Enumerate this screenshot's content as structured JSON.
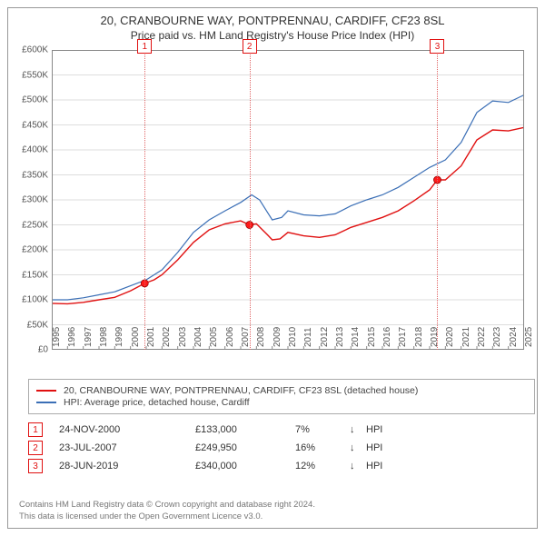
{
  "title": "20, CRANBOURNE WAY, PONTPRENNAU, CARDIFF, CF23 8SL",
  "subtitle": "Price paid vs. HM Land Registry's House Price Index (HPI)",
  "colors": {
    "frame_border": "#999999",
    "axis": "#888888",
    "grid": "#dddddd",
    "series_property": "#e01010",
    "series_hpi": "#3b6fb6",
    "marker_vline": "#e06666",
    "sale_dot_fill": "#ff1a1a",
    "background": "#ffffff",
    "text": "#333333",
    "footer_text": "#777777"
  },
  "chart": {
    "type": "line",
    "x_start_year": 1995,
    "x_end_year": 2025,
    "ylim": [
      0,
      600000
    ],
    "ytick_step": 50000,
    "ytick_labels": [
      "£0",
      "£50K",
      "£100K",
      "£150K",
      "£200K",
      "£250K",
      "£300K",
      "£350K",
      "£400K",
      "£450K",
      "£500K",
      "£550K",
      "£600K"
    ],
    "xtick_labels": [
      "1995",
      "1996",
      "1997",
      "1998",
      "1999",
      "2000",
      "2001",
      "2002",
      "2003",
      "2004",
      "2005",
      "2006",
      "2007",
      "2008",
      "2009",
      "2010",
      "2011",
      "2012",
      "2013",
      "2014",
      "2015",
      "2016",
      "2017",
      "2018",
      "2019",
      "2020",
      "2021",
      "2022",
      "2023",
      "2024",
      "2025"
    ],
    "series": {
      "property": {
        "label": "20, CRANBOURNE WAY, PONTPRENNAU, CARDIFF, CF23 8SL (detached house)",
        "line_width": 1.4,
        "points": [
          [
            1995.0,
            93000
          ],
          [
            1996.0,
            92000
          ],
          [
            1997.0,
            95000
          ],
          [
            1998.0,
            100000
          ],
          [
            1999.0,
            105000
          ],
          [
            2000.0,
            118000
          ],
          [
            2000.9,
            133000
          ],
          [
            2001.5,
            140000
          ],
          [
            2002.0,
            150000
          ],
          [
            2003.0,
            180000
          ],
          [
            2004.0,
            215000
          ],
          [
            2005.0,
            240000
          ],
          [
            2006.0,
            252000
          ],
          [
            2007.0,
            258000
          ],
          [
            2007.56,
            249950
          ],
          [
            2008.0,
            252000
          ],
          [
            2008.7,
            230000
          ],
          [
            2009.0,
            220000
          ],
          [
            2009.5,
            222000
          ],
          [
            2010.0,
            235000
          ],
          [
            2011.0,
            228000
          ],
          [
            2012.0,
            225000
          ],
          [
            2013.0,
            230000
          ],
          [
            2014.0,
            245000
          ],
          [
            2015.0,
            255000
          ],
          [
            2016.0,
            265000
          ],
          [
            2017.0,
            278000
          ],
          [
            2018.0,
            298000
          ],
          [
            2019.0,
            320000
          ],
          [
            2019.49,
            340000
          ],
          [
            2020.0,
            340000
          ],
          [
            2021.0,
            368000
          ],
          [
            2022.0,
            420000
          ],
          [
            2023.0,
            440000
          ],
          [
            2024.0,
            438000
          ],
          [
            2025.0,
            445000
          ]
        ]
      },
      "hpi": {
        "label": "HPI: Average price, detached house, Cardiff",
        "line_width": 1.2,
        "points": [
          [
            1995.0,
            100000
          ],
          [
            1996.0,
            100000
          ],
          [
            1997.0,
            104000
          ],
          [
            1998.0,
            110000
          ],
          [
            1999.0,
            116000
          ],
          [
            2000.0,
            128000
          ],
          [
            2001.0,
            140000
          ],
          [
            2002.0,
            160000
          ],
          [
            2003.0,
            195000
          ],
          [
            2004.0,
            235000
          ],
          [
            2005.0,
            260000
          ],
          [
            2006.0,
            278000
          ],
          [
            2007.0,
            295000
          ],
          [
            2007.7,
            310000
          ],
          [
            2008.2,
            300000
          ],
          [
            2008.7,
            275000
          ],
          [
            2009.0,
            260000
          ],
          [
            2009.6,
            265000
          ],
          [
            2010.0,
            278000
          ],
          [
            2011.0,
            270000
          ],
          [
            2012.0,
            268000
          ],
          [
            2013.0,
            272000
          ],
          [
            2014.0,
            288000
          ],
          [
            2015.0,
            300000
          ],
          [
            2016.0,
            310000
          ],
          [
            2017.0,
            325000
          ],
          [
            2018.0,
            345000
          ],
          [
            2019.0,
            365000
          ],
          [
            2020.0,
            380000
          ],
          [
            2021.0,
            415000
          ],
          [
            2022.0,
            475000
          ],
          [
            2023.0,
            498000
          ],
          [
            2024.0,
            495000
          ],
          [
            2025.0,
            510000
          ]
        ]
      }
    },
    "sale_markers": [
      {
        "n": "1",
        "year": 2000.9,
        "price": 133000
      },
      {
        "n": "2",
        "year": 2007.56,
        "price": 249950
      },
      {
        "n": "3",
        "year": 2019.49,
        "price": 340000
      }
    ]
  },
  "legend": {
    "items": [
      {
        "key": "property"
      },
      {
        "key": "hpi"
      }
    ]
  },
  "sales": [
    {
      "n": "1",
      "date": "24-NOV-2000",
      "price": "£133,000",
      "pct": "7%",
      "dir": "↓",
      "tag": "HPI"
    },
    {
      "n": "2",
      "date": "23-JUL-2007",
      "price": "£249,950",
      "pct": "16%",
      "dir": "↓",
      "tag": "HPI"
    },
    {
      "n": "3",
      "date": "28-JUN-2019",
      "price": "£340,000",
      "pct": "12%",
      "dir": "↓",
      "tag": "HPI"
    }
  ],
  "footer": {
    "line1": "Contains HM Land Registry data © Crown copyright and database right 2024.",
    "line2": "This data is licensed under the Open Government Licence v3.0."
  }
}
